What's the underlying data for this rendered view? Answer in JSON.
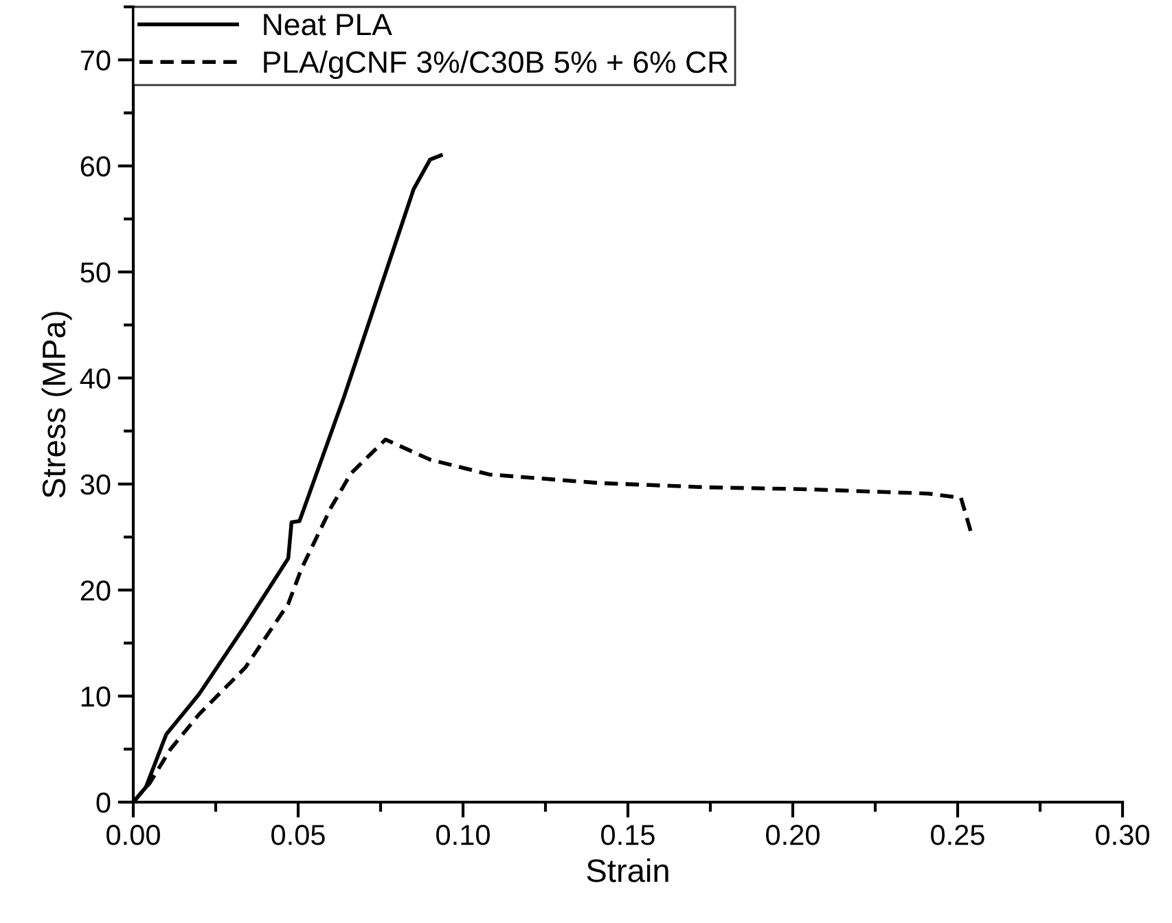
{
  "chart_data": {
    "type": "line",
    "xlabel": "Strain",
    "ylabel": "Stress (MPa)",
    "xlim": [
      0,
      0.3
    ],
    "ylim": [
      0,
      75
    ],
    "xticks": [
      {
        "value": 0,
        "label": "0.00"
      },
      {
        "value": 0.05,
        "label": "0.05"
      },
      {
        "value": 0.1,
        "label": "0.10"
      },
      {
        "value": 0.15,
        "label": "0.15"
      },
      {
        "value": 0.2,
        "label": "0.20"
      },
      {
        "value": 0.25,
        "label": "0.25"
      },
      {
        "value": 0.3,
        "label": "0.30"
      }
    ],
    "yticks": [
      0,
      10,
      20,
      30,
      40,
      50,
      60,
      70
    ],
    "grid": false,
    "legend": "top left",
    "series": [
      {
        "name": "Neat PLA",
        "color": "#000000",
        "line_style": "solid",
        "x": [
          0,
          0.0038,
          0.01,
          0.02,
          0.034,
          0.047,
          0.048,
          0.0504,
          0.064,
          0.078,
          0.085,
          0.09,
          0.0933
        ],
        "values": [
          0,
          1.4,
          6.4,
          10.2,
          16.7,
          23,
          26.4,
          26.5,
          38.3,
          51.3,
          57.8,
          60.6,
          61
        ]
      },
      {
        "name": "PLA/gCNF 3%/C30B 5% + 6% CR",
        "color": "#000000",
        "line_style": "dashed",
        "x": [
          0,
          0.005,
          0.0113,
          0.02,
          0.034,
          0.047,
          0.051,
          0.06,
          0.066,
          0.0765,
          0.09,
          0.108,
          0.141,
          0.173,
          0.205,
          0.241,
          0.251,
          0.254
        ],
        "values": [
          0,
          1.8,
          5,
          8.3,
          12.7,
          18.7,
          22,
          27.8,
          31,
          34.2,
          32.3,
          30.9,
          30.1,
          29.7,
          29.5,
          29.1,
          28.7,
          25.5
        ]
      }
    ]
  }
}
